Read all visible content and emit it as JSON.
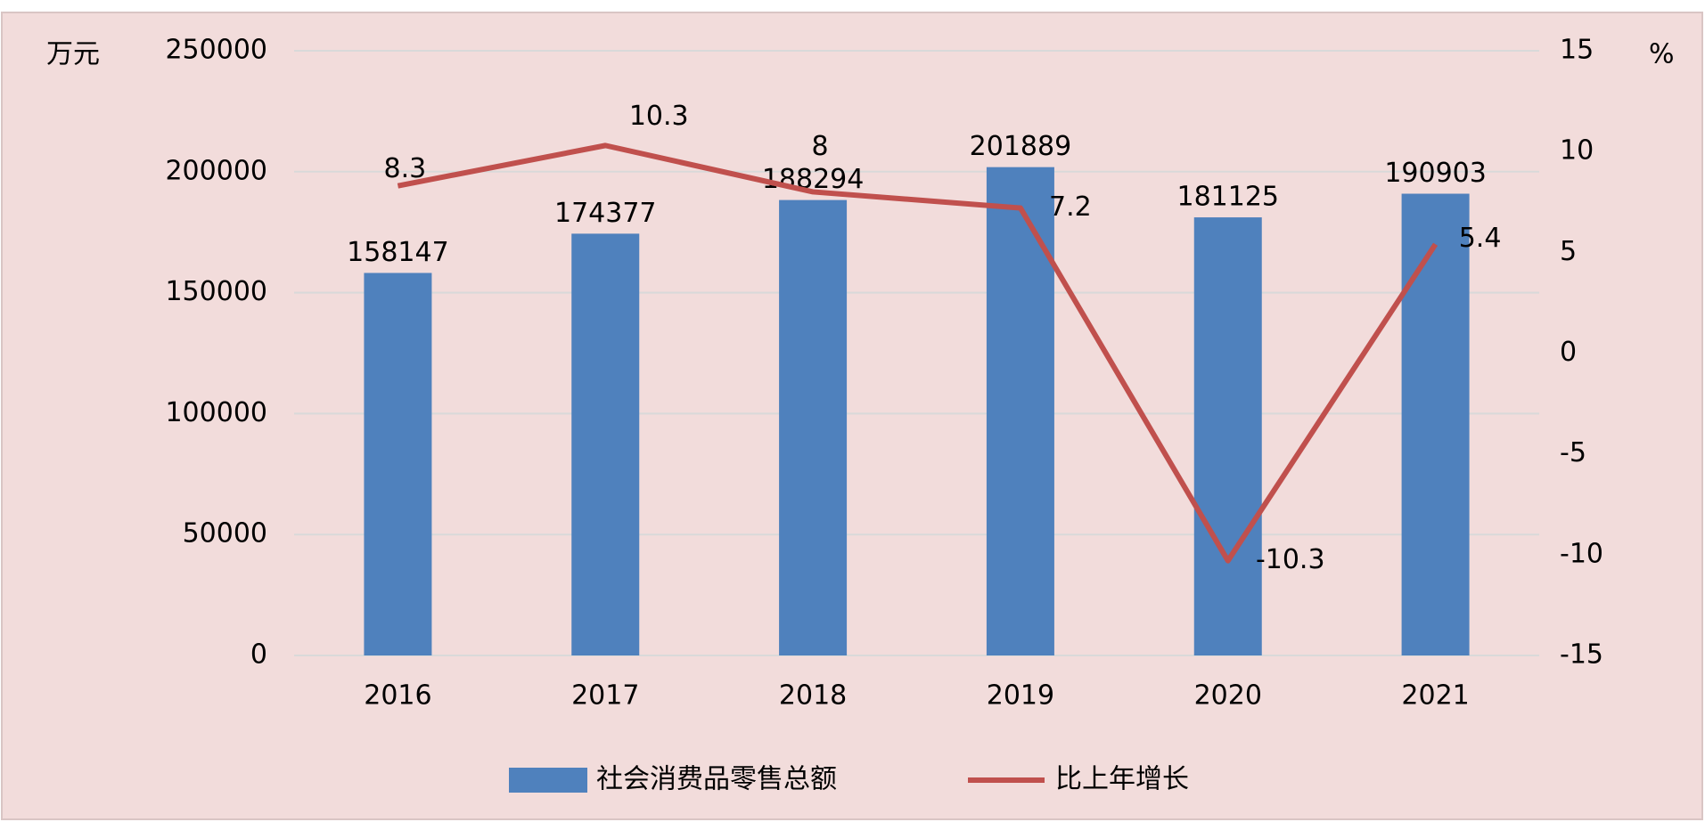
{
  "chart_data": {
    "type": "bar-line",
    "categories": [
      "2016",
      "2017",
      "2018",
      "2019",
      "2020",
      "2021"
    ],
    "series": [
      {
        "name": "社会消费品零售总额",
        "type": "bar",
        "color": "#4f81bd",
        "values": [
          158147,
          174377,
          188294,
          201889,
          181125,
          190903
        ]
      },
      {
        "name": "比上年增长",
        "type": "line",
        "axis": "y2",
        "color": "#c0504d",
        "values": [
          8.3,
          10.3,
          8,
          7.2,
          -10.3,
          5.4
        ]
      }
    ],
    "ylabel": "万元",
    "y2label": "%",
    "ylim": [
      0,
      250000
    ],
    "yticks": [
      0,
      50000,
      100000,
      150000,
      200000,
      250000
    ],
    "y2lim": [
      -15,
      15
    ],
    "y2ticks": [
      -15,
      -10,
      -5,
      0,
      5,
      10,
      15
    ],
    "grid": true,
    "legend": "bottom"
  }
}
